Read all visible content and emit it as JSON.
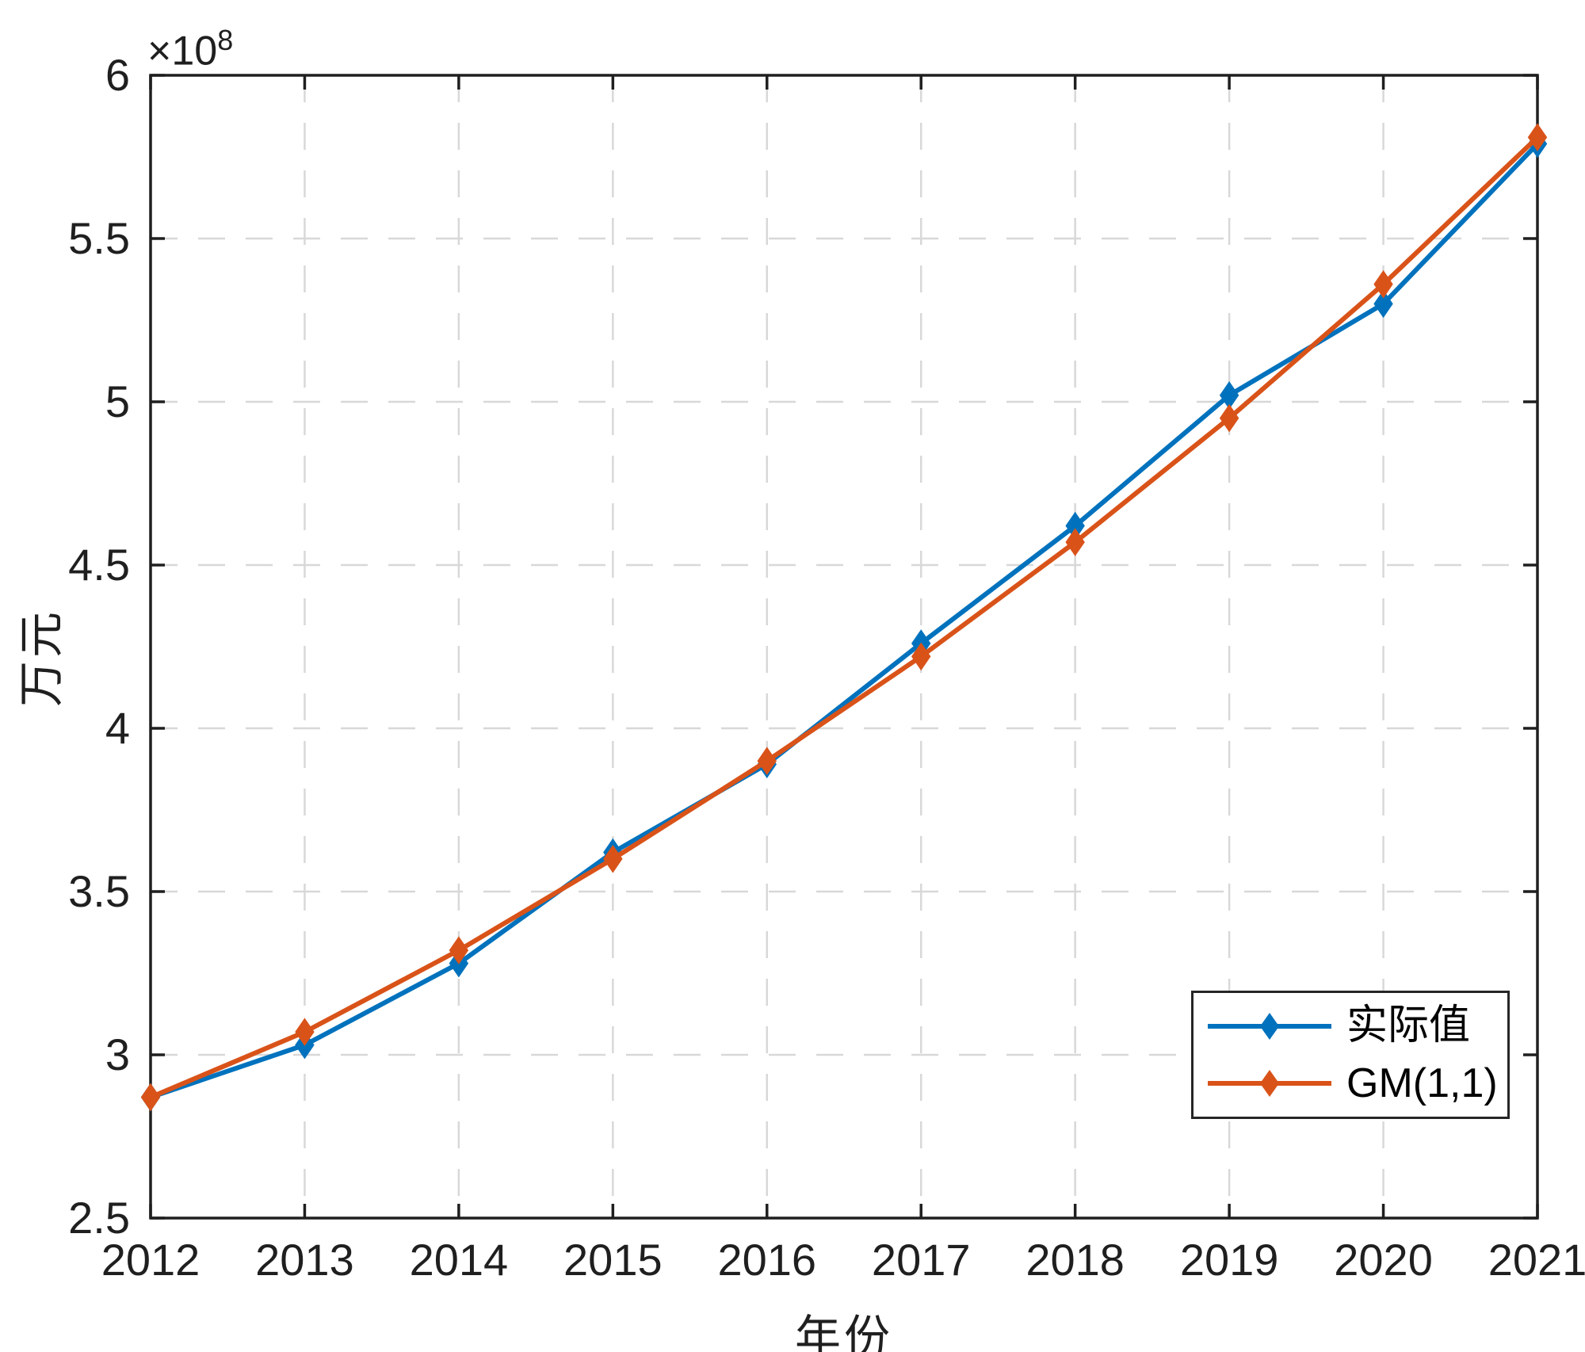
{
  "figure": {
    "xlabel": "年份",
    "ylabel": "万元",
    "y_multiplier_base": "×10",
    "y_multiplier_exp": "8"
  },
  "legend": {
    "items": [
      {
        "label": "实际值",
        "color": "#0072BD"
      },
      {
        "label": "GM(1,1)",
        "color": "#D95319"
      }
    ]
  },
  "chart_data": {
    "type": "line",
    "title": "",
    "xlabel": "年份",
    "ylabel": "万元",
    "y_unit_multiplier": "×10^8",
    "grid": "dashed",
    "legend_position": "inside-lower-right",
    "x": [
      2012,
      2013,
      2014,
      2015,
      2016,
      2017,
      2018,
      2019,
      2020,
      2021
    ],
    "xtick_labels": [
      "2012",
      "2013",
      "2014",
      "2015",
      "2016",
      "2017",
      "2018",
      "2019",
      "2020",
      "2021"
    ],
    "xlim": [
      2012,
      2021
    ],
    "ylim": [
      2.5,
      6.0
    ],
    "yticks": [
      2.5,
      3.0,
      3.5,
      4.0,
      4.5,
      5.0,
      5.5,
      6.0
    ],
    "ytick_labels": [
      "2.5",
      "3",
      "3.5",
      "4",
      "4.5",
      "5",
      "5.5",
      "6"
    ],
    "series": [
      {
        "name": "实际值",
        "color": "#0072BD",
        "marker": "diamond",
        "values": [
          2.87,
          3.03,
          3.28,
          3.62,
          3.89,
          4.26,
          4.62,
          5.02,
          5.3,
          5.79
        ]
      },
      {
        "name": "GM(1,1)",
        "color": "#D95319",
        "marker": "diamond",
        "values": [
          2.87,
          3.07,
          3.32,
          3.6,
          3.9,
          4.22,
          4.57,
          4.95,
          5.36,
          5.81
        ]
      }
    ]
  }
}
